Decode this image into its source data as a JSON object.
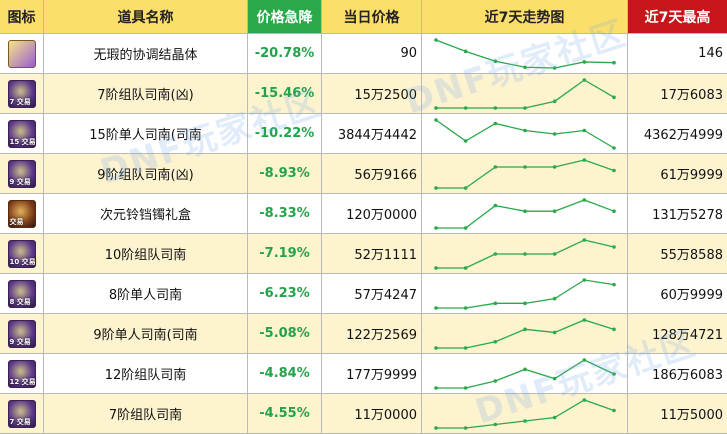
{
  "headers": {
    "icon": "图标",
    "name": "道具名称",
    "drop": "价格急降",
    "price": "当日价格",
    "trend": "近7天走势图",
    "max": "近7天最高"
  },
  "colors": {
    "header_bg": "#fcdf6a",
    "drop_header_bg": "#2aa84a",
    "max_header_bg": "#c8151b",
    "drop_text": "#22a34a",
    "row_alt_bg": "#fdf3cf",
    "trend_line": "#2aa84a"
  },
  "rows": [
    {
      "icon": "crystal-icon",
      "icon_style": "gold",
      "icon_badge": "",
      "name": "无瑕的协调结晶体",
      "drop": "-20.78%",
      "price": "90",
      "max": "146",
      "trend": [
        100,
        85,
        72,
        64,
        63,
        71,
        70
      ]
    },
    {
      "icon": "sinan-icon",
      "icon_style": "purple",
      "icon_badge": "7 交易",
      "name": "7阶组队司南(凶)",
      "drop": "-15.46%",
      "price": "15万2500",
      "max": "17万6083",
      "trend": [
        55,
        55,
        55,
        55,
        60,
        76,
        63
      ]
    },
    {
      "icon": "sinan-icon",
      "icon_style": "purple",
      "icon_badge": "15 交易",
      "name": "15阶单人司南(司南",
      "drop": "-10.22%",
      "price": "3844万4442",
      "max": "4362万4999",
      "trend": [
        96,
        90,
        95,
        93,
        92,
        93,
        88
      ]
    },
    {
      "icon": "sinan-icon",
      "icon_style": "purple",
      "icon_badge": "9 交易",
      "name": "9阶组队司南(凶)",
      "drop": "-8.93%",
      "price": "56万9166",
      "max": "61万9999",
      "trend": [
        54,
        54,
        60,
        60,
        60,
        62,
        59
      ]
    },
    {
      "icon": "gift-icon",
      "icon_style": "brown",
      "icon_badge": "交易",
      "name": "次元铃铛镯礼盒",
      "drop": "-8.33%",
      "price": "120万0000",
      "max": "131万5278",
      "trend": [
        125,
        125,
        129,
        128,
        128,
        130,
        128
      ]
    },
    {
      "icon": "sinan-icon",
      "icon_style": "purple",
      "icon_badge": "10 交易",
      "name": "10阶组队司南",
      "drop": "-7.19%",
      "price": "52万1111",
      "max": "55万8588",
      "trend": [
        51,
        51,
        53,
        53,
        53,
        55,
        54
      ]
    },
    {
      "icon": "sinan-icon",
      "icon_style": "purple",
      "icon_badge": "8 交易",
      "name": "8阶单人司南",
      "drop": "-6.23%",
      "price": "57万4247",
      "max": "60万9999",
      "trend": [
        54,
        54,
        55,
        55,
        56,
        60,
        59
      ]
    },
    {
      "icon": "sinan-icon",
      "icon_style": "purple",
      "icon_badge": "9 交易",
      "name": "9阶单人司南(司南",
      "drop": "-5.08%",
      "price": "122万2569",
      "max": "128万4721",
      "trend": [
        118,
        118,
        120,
        124,
        123,
        127,
        124
      ]
    },
    {
      "icon": "sinan-icon",
      "icon_style": "purple",
      "icon_badge": "12 交易",
      "name": "12阶组队司南",
      "drop": "-4.84%",
      "price": "177万9999",
      "max": "186万6083",
      "trend": [
        172,
        172,
        175,
        180,
        176,
        184,
        178
      ]
    },
    {
      "icon": "sinan-icon",
      "icon_style": "purple",
      "icon_badge": "7 交易",
      "name": "7阶组队司南",
      "drop": "-4.55%",
      "price": "11万0000",
      "max": "11万5000",
      "trend": [
        10.7,
        10.7,
        10.8,
        10.9,
        11.0,
        11.5,
        11.2
      ]
    }
  ],
  "watermark": [
    "DNF玩家社区",
    "DNF玩家社区",
    "DNF玩家社区"
  ]
}
